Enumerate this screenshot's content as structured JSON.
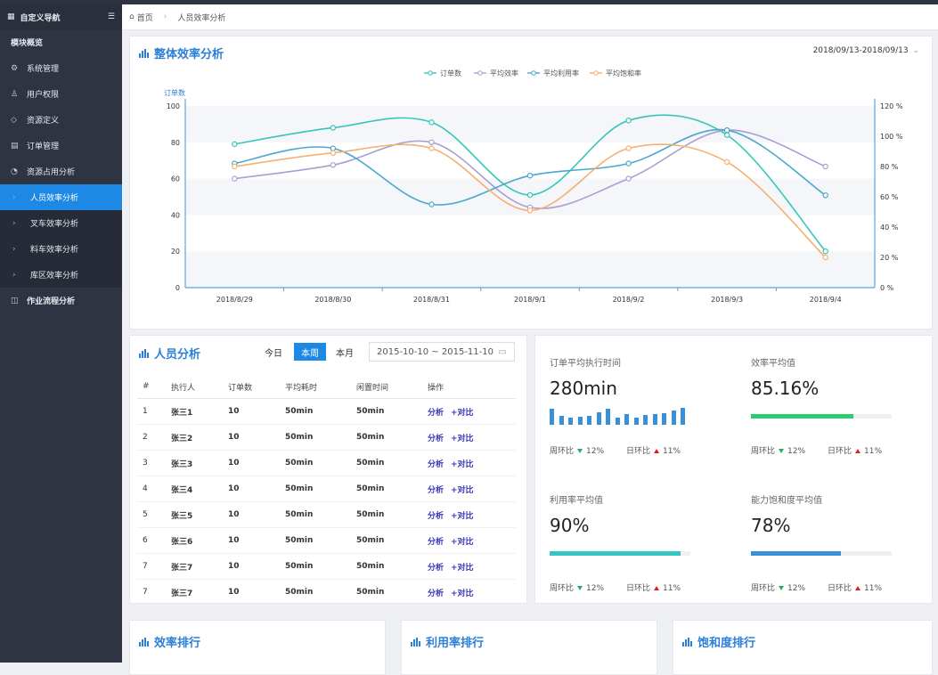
{
  "sidebar": {
    "header": "自定义导航",
    "section": "模块概览",
    "items": [
      {
        "label": "系统管理",
        "icon": "gear-icon"
      },
      {
        "label": "用户权限",
        "icon": "user-icon"
      },
      {
        "label": "资源定义",
        "icon": "tag-icon"
      },
      {
        "label": "订单管理",
        "icon": "document-icon"
      },
      {
        "label": "资源占用分析",
        "icon": "clock-icon"
      }
    ],
    "subitems": [
      "人员效率分析",
      "叉车效率分析",
      "料车效率分析",
      "库区效率分析"
    ],
    "last_item": "作业流程分析"
  },
  "breadcrumb": {
    "home": "首页",
    "current": "人员效率分析"
  },
  "overall": {
    "title": "整体效率分析",
    "date_range": "2018/09/13-2018/09/13",
    "legend": [
      "订单数",
      "平均效率",
      "平均利用率",
      "平均饱和率"
    ]
  },
  "chart_data": {
    "type": "line",
    "x": [
      "2018/8/29",
      "2018/8/30",
      "2018/8/31",
      "2018/9/1",
      "2018/9/2",
      "2018/9/3",
      "2018/9/4"
    ],
    "ylabel": "订单数",
    "ylim": [
      0,
      100
    ],
    "y_ticks": [
      "0",
      "20",
      "40",
      "60",
      "80",
      "100"
    ],
    "y2lim": [
      0,
      120
    ],
    "y2_ticks": [
      "0 %",
      "20 %",
      "40 %",
      "60 %",
      "80 %",
      "100 %",
      "120 %"
    ],
    "series": [
      {
        "name": "订单数",
        "axis": "left",
        "color": "#36c6b8",
        "values": [
          79,
          88,
          91,
          51,
          92,
          84,
          20
        ]
      },
      {
        "name": "平均效率",
        "axis": "right",
        "color": "#a99fcf",
        "values": [
          72,
          81,
          96,
          53,
          72,
          104,
          80
        ]
      },
      {
        "name": "平均利用率",
        "axis": "right",
        "color": "#4aa8cc",
        "values": [
          82,
          92,
          55,
          74,
          82,
          104,
          61
        ]
      },
      {
        "name": "平均饱和率",
        "axis": "right",
        "color": "#f5b070",
        "values": [
          80,
          89,
          92,
          51,
          92,
          83,
          20
        ]
      }
    ],
    "grid": true,
    "legend_position": "top"
  },
  "people": {
    "title": "人员分析",
    "tabs": [
      "今日",
      "本周",
      "本月"
    ],
    "active_tab": "本周",
    "date_range": "2015-10-10 ~ 2015-11-10",
    "columns": [
      "#",
      "执行人",
      "订单数",
      "平均耗时",
      "闲置时间",
      "操作"
    ],
    "rows": [
      [
        "1",
        "张三1",
        "10",
        "50min",
        "50min"
      ],
      [
        "2",
        "张三2",
        "10",
        "50min",
        "50min"
      ],
      [
        "3",
        "张三3",
        "10",
        "50min",
        "50min"
      ],
      [
        "4",
        "张三4",
        "10",
        "50min",
        "50min"
      ],
      [
        "5",
        "张三5",
        "10",
        "50min",
        "50min"
      ],
      [
        "6",
        "张三6",
        "10",
        "50min",
        "50min"
      ],
      [
        "7",
        "张三7",
        "10",
        "50min",
        "50min"
      ],
      [
        "7",
        "张三7",
        "10",
        "50min",
        "50min"
      ]
    ],
    "op_analyze": "分析",
    "op_compare": "+对比"
  },
  "kpis": [
    {
      "label": "订单平均执行时间",
      "value": "280min",
      "week": "周环比",
      "week_val": "12%",
      "day": "日环比",
      "day_val": "11%"
    },
    {
      "label": "效率平均值",
      "value": "85.16%",
      "week": "周环比",
      "week_val": "12%",
      "day": "日环比",
      "day_val": "11%",
      "progress": 0.73,
      "color": "#2ecc71"
    },
    {
      "label": "利用率平均值",
      "value": "90%",
      "week": "周环比",
      "week_val": "12%",
      "day": "日环比",
      "day_val": "11%",
      "progress": 0.93,
      "color": "#36c6c0"
    },
    {
      "label": "能力饱和度平均值",
      "value": "78%",
      "week": "周环比",
      "week_val": "12%",
      "day": "日环比",
      "day_val": "11%",
      "progress": 0.64,
      "color": "#3a8fd9"
    }
  ],
  "mini_bars": [
    0.9,
    0.5,
    0.4,
    0.45,
    0.5,
    0.7,
    0.9,
    0.4,
    0.6,
    0.4,
    0.55,
    0.6,
    0.65,
    0.8,
    0.95
  ],
  "rankings": [
    "效率排行",
    "利用率排行",
    "饱和度排行"
  ],
  "colors": {
    "accent": "#2b7fd8",
    "sidebar": "#2f3442",
    "active": "#1e88e5"
  }
}
